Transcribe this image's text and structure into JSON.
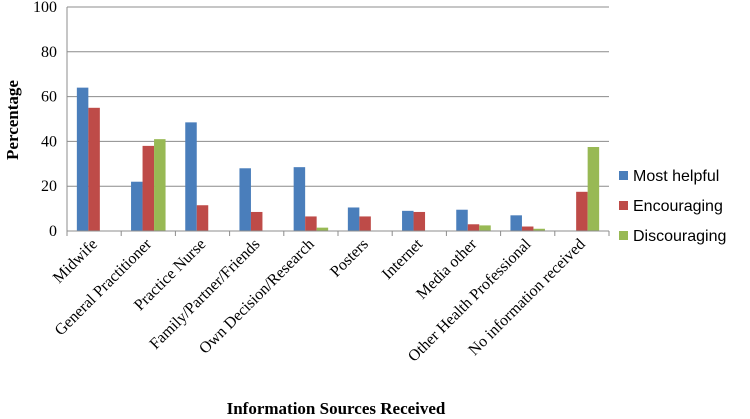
{
  "chart_data": {
    "type": "bar",
    "title": "",
    "xlabel": "Information  Sources Received",
    "ylabel": "Percentage",
    "ylim": [
      0,
      100
    ],
    "yticks": [
      0,
      20,
      40,
      60,
      80,
      100
    ],
    "grid": true,
    "legend_position": "right",
    "categories": [
      "Midwife",
      "General Practitioner",
      "Practice Nurse",
      "Family/Partner/Friends",
      "Own Decision/Research",
      "Posters",
      "Internet",
      "Media other",
      "Other Health Professional",
      "No information received"
    ],
    "series": [
      {
        "name": "Most helpful",
        "color": "#4a7ebb",
        "values": [
          64,
          22,
          48.5,
          28,
          28.5,
          10.5,
          9,
          9.5,
          7,
          0
        ]
      },
      {
        "name": "Encouraging",
        "color": "#be4b48",
        "values": [
          55,
          38,
          11.5,
          8.5,
          6.5,
          6.5,
          8.5,
          3,
          2,
          17.5
        ]
      },
      {
        "name": "Discouraging",
        "color": "#98b954",
        "values": [
          0,
          41,
          0,
          0,
          1.5,
          0,
          0,
          2.5,
          1,
          37.5
        ]
      }
    ]
  }
}
